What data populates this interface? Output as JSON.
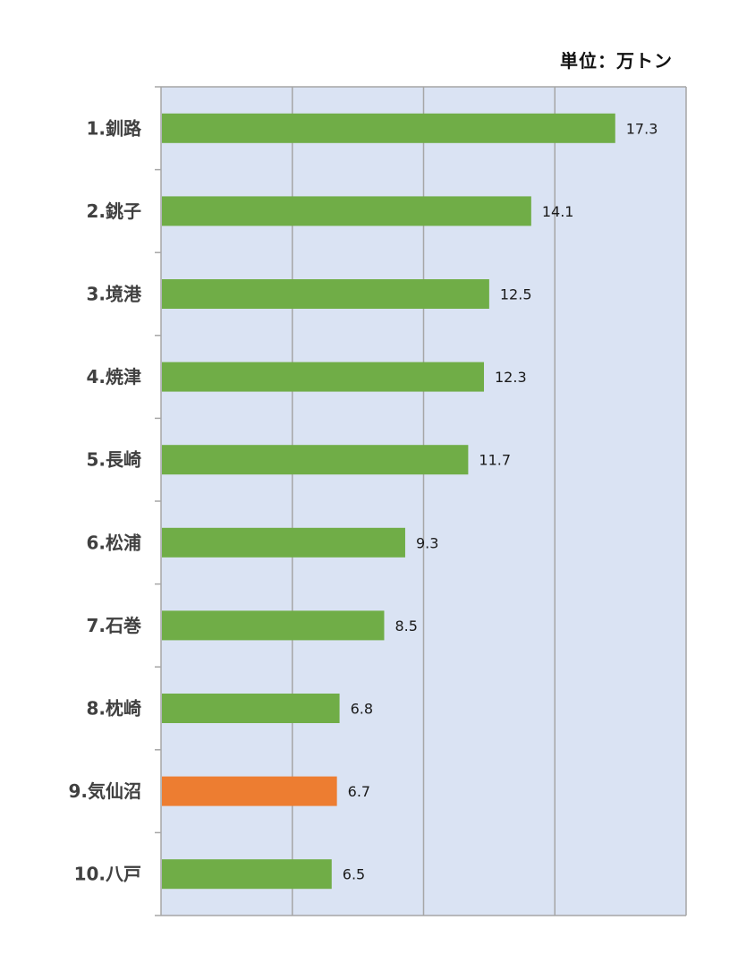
{
  "unit_label": "単位：万トン",
  "chart_data": {
    "type": "bar",
    "orientation": "horizontal",
    "categories": [
      "1.釧路",
      "2.銚子",
      "3.境港",
      "4.焼津",
      "5.長崎",
      "6.松浦",
      "7.石巻",
      "8.枕崎",
      "9.気仙沼",
      "10.八戸"
    ],
    "values": [
      17.3,
      14.1,
      12.5,
      12.3,
      11.7,
      9.3,
      8.5,
      6.8,
      6.7,
      6.5
    ],
    "data_labels": [
      "17.3",
      "14.1",
      "12.5",
      "12.3",
      "11.7",
      "9.3",
      "8.5",
      "6.8",
      "6.7",
      "6.5"
    ],
    "xlim": [
      0,
      20
    ],
    "gridlines_x": [
      5,
      10,
      15
    ],
    "grid": true,
    "bar_color": "#70ad47",
    "highlight_index": 8,
    "highlight_color": "#ed7d31",
    "plot_background": "#dae3f3",
    "axis_color": "#a6a6a6"
  }
}
